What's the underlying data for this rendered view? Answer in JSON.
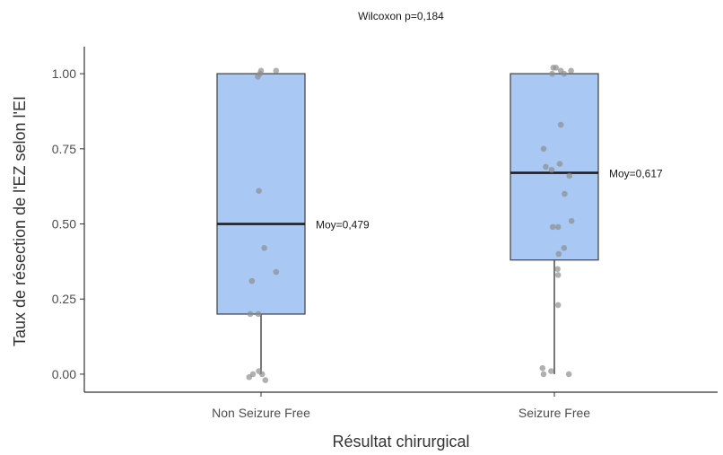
{
  "chart_data": {
    "type": "box",
    "subtitle": "Wilcoxon p=0,184",
    "xlabel": "Résultat chirurgical",
    "ylabel": "Taux de résection de l'EZ selon l'EI",
    "ylim": [
      -0.06,
      1.09
    ],
    "yticks": [
      0.0,
      0.25,
      0.5,
      0.75,
      1.0
    ],
    "ytick_labels": [
      "0.00",
      "0.25",
      "0.50",
      "0.75",
      "1.00"
    ],
    "categories": [
      "Non Seizure Free",
      "Seizure Free"
    ],
    "grid": false,
    "colors": {
      "box_fill": "#a9c8f3",
      "box_stroke": "#4a4a4a",
      "median": "#1f1f1f",
      "points": "#8f8f8f",
      "axis": "#333333"
    },
    "groups": [
      {
        "category": "Non Seizure Free",
        "whisker_low": 0.0,
        "q1": 0.2,
        "median": 0.5,
        "q3": 1.0,
        "whisker_high": 1.0,
        "mean_label": "Moy=0,479",
        "points": [
          {
            "x": -0.22,
            "y": -0.01
          },
          {
            "x": -0.15,
            "y": 0.0
          },
          {
            "x": -0.04,
            "y": 0.01
          },
          {
            "x": 0.02,
            "y": 0.0
          },
          {
            "x": 0.08,
            "y": -0.02
          },
          {
            "x": -0.2,
            "y": 0.2
          },
          {
            "x": -0.05,
            "y": 0.2
          },
          {
            "x": -0.17,
            "y": 0.31
          },
          {
            "x": 0.28,
            "y": 0.34
          },
          {
            "x": 0.06,
            "y": 0.42
          },
          {
            "x": -0.04,
            "y": 0.61
          },
          {
            "x": -0.06,
            "y": 0.99
          },
          {
            "x": -0.02,
            "y": 1.0
          },
          {
            "x": 0.0,
            "y": 1.01
          },
          {
            "x": 0.28,
            "y": 1.01
          }
        ]
      },
      {
        "category": "Seizure Free",
        "whisker_low": 0.0,
        "q1": 0.38,
        "median": 0.67,
        "q3": 1.0,
        "whisker_high": 1.0,
        "mean_label": "Moy=0,617",
        "points": [
          {
            "x": -0.22,
            "y": 0.02
          },
          {
            "x": -0.2,
            "y": 0.0
          },
          {
            "x": -0.06,
            "y": 0.01
          },
          {
            "x": 0.27,
            "y": 0.0
          },
          {
            "x": 0.07,
            "y": 0.23
          },
          {
            "x": 0.07,
            "y": 0.33
          },
          {
            "x": 0.06,
            "y": 0.35
          },
          {
            "x": 0.08,
            "y": 0.4
          },
          {
            "x": 0.18,
            "y": 0.42
          },
          {
            "x": -0.03,
            "y": 0.49
          },
          {
            "x": 0.07,
            "y": 0.49
          },
          {
            "x": 0.32,
            "y": 0.51
          },
          {
            "x": 0.19,
            "y": 0.6
          },
          {
            "x": 0.28,
            "y": 0.66
          },
          {
            "x": -0.05,
            "y": 0.68
          },
          {
            "x": 0.1,
            "y": 0.7
          },
          {
            "x": -0.16,
            "y": 0.69
          },
          {
            "x": -0.2,
            "y": 0.75
          },
          {
            "x": 0.12,
            "y": 0.83
          },
          {
            "x": -0.04,
            "y": 1.0
          },
          {
            "x": -0.02,
            "y": 1.02
          },
          {
            "x": 0.03,
            "y": 1.02
          },
          {
            "x": 0.12,
            "y": 1.01
          },
          {
            "x": 0.31,
            "y": 1.01
          },
          {
            "x": 0.18,
            "y": 1.0
          }
        ]
      }
    ]
  }
}
